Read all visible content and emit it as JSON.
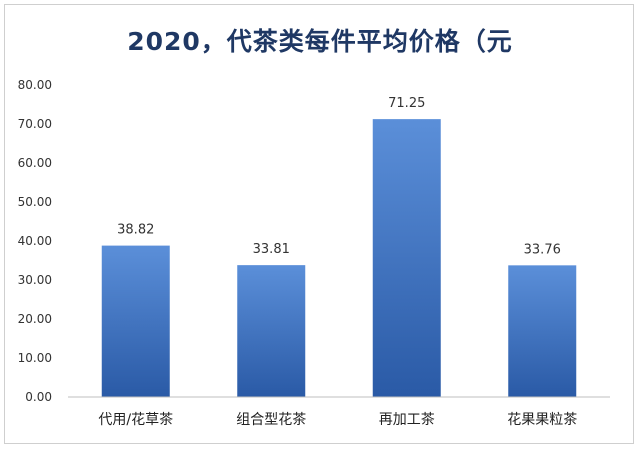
{
  "chart_data": {
    "type": "bar",
    "title": "2020，代茶类每件平均价格（元",
    "xlabel": "",
    "ylabel": "",
    "categories": [
      "代用/花草茶",
      "组合型花茶",
      "再加工茶",
      "花果果粒茶"
    ],
    "values": [
      38.82,
      33.81,
      71.25,
      33.76
    ],
    "value_labels": [
      "38.82",
      "33.81",
      "71.25",
      "33.76"
    ],
    "ylim": [
      0,
      80
    ],
    "y_ticks": [
      "0.00",
      "10.00",
      "20.00",
      "30.00",
      "40.00",
      "50.00",
      "60.00",
      "70.00",
      "80.00"
    ],
    "grid": false,
    "legend": "none",
    "colors": {
      "bar_top": "#5b8fd9",
      "bar_bottom": "#2a5aa6",
      "title": "#1f3864"
    }
  }
}
